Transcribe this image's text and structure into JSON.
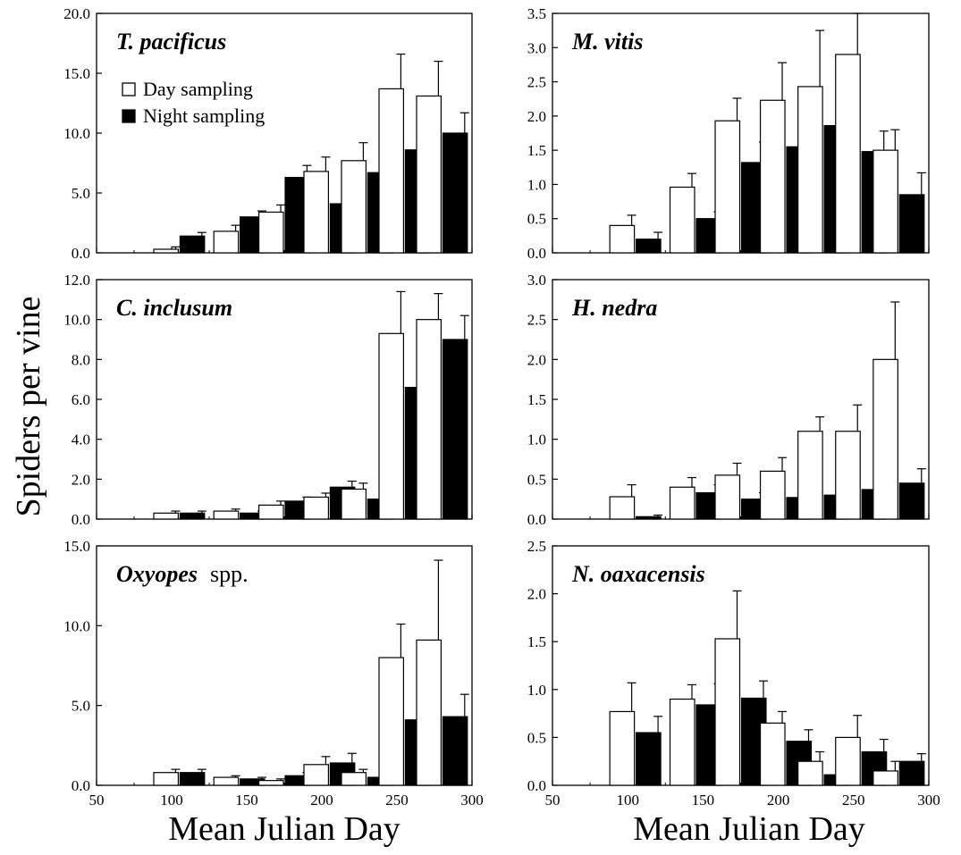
{
  "colors": {
    "day": "#ffffff",
    "night": "#000000",
    "stroke": "#000000"
  },
  "figure": {
    "ylabel": "Spiders per vine",
    "xlabel_left": "Mean Julian Day",
    "xlabel_right": "Mean Julian Day"
  },
  "chart_data": [
    {
      "type": "bar",
      "title": "T. pacificus",
      "x": [
        105,
        145,
        175,
        205,
        230,
        255,
        280
      ],
      "series": [
        {
          "name": "Day sampling",
          "values": [
            0.3,
            1.8,
            3.4,
            6.8,
            7.7,
            13.7,
            13.1
          ],
          "errors": [
            0.2,
            0.5,
            0.6,
            1.2,
            1.5,
            2.9,
            2.9
          ]
        },
        {
          "name": "Night sampling",
          "values": [
            1.4,
            3.0,
            6.3,
            4.1,
            6.7,
            8.6,
            10.0
          ],
          "errors": [
            0.3,
            0.5,
            1.0,
            0.7,
            1.6,
            1.1,
            1.7
          ]
        }
      ],
      "xlim": [
        50,
        300
      ],
      "ylim": [
        0,
        20
      ],
      "yticks": [
        "0.0",
        "5.0",
        "10.0",
        "15.0",
        "20.0"
      ],
      "xticks": [
        "50",
        "100",
        "150",
        "200",
        "250",
        "300"
      ],
      "legend": "top-left"
    },
    {
      "type": "bar",
      "title": "M. vitis",
      "x": [
        105,
        145,
        175,
        205,
        230,
        255,
        280
      ],
      "series": [
        {
          "name": "Day sampling",
          "values": [
            0.4,
            0.96,
            1.93,
            2.23,
            2.43,
            2.9,
            1.5
          ],
          "errors": [
            0.15,
            0.2,
            0.33,
            0.55,
            0.82,
            0.6,
            0.3
          ]
        },
        {
          "name": "Night sampling",
          "values": [
            0.2,
            0.5,
            1.32,
            1.55,
            1.86,
            1.48,
            0.85
          ],
          "errors": [
            0.1,
            0.1,
            0.3,
            0.3,
            0.45,
            0.3,
            0.32
          ]
        }
      ],
      "xlim": [
        50,
        300
      ],
      "ylim": [
        0,
        3.5
      ],
      "yticks": [
        "0.0",
        "0.5",
        "1.0",
        "1.5",
        "2.0",
        "2.5",
        "3.0",
        "3.5"
      ],
      "xticks": [
        "50",
        "100",
        "150",
        "200",
        "250",
        "300"
      ]
    },
    {
      "type": "bar",
      "title": "C. inclusum",
      "x": [
        105,
        145,
        175,
        205,
        230,
        255,
        280
      ],
      "series": [
        {
          "name": "Day sampling",
          "values": [
            0.3,
            0.4,
            0.7,
            1.1,
            1.5,
            9.3,
            10.0
          ],
          "errors": [
            0.1,
            0.1,
            0.2,
            0.2,
            0.3,
            2.1,
            1.3
          ]
        },
        {
          "name": "Night sampling",
          "values": [
            0.3,
            0.3,
            0.9,
            1.6,
            1.0,
            6.6,
            9.0
          ],
          "errors": [
            0.1,
            0.1,
            0.2,
            0.3,
            0.4,
            1.7,
            1.2
          ]
        }
      ],
      "xlim": [
        50,
        300
      ],
      "ylim": [
        0,
        12
      ],
      "yticks": [
        "0.0",
        "2.0",
        "4.0",
        "6.0",
        "8.0",
        "10.0",
        "12.0"
      ],
      "xticks": [
        "50",
        "100",
        "150",
        "200",
        "250",
        "300"
      ]
    },
    {
      "type": "bar",
      "title": "H. nedra",
      "x": [
        105,
        145,
        175,
        205,
        230,
        255,
        280
      ],
      "series": [
        {
          "name": "Day sampling",
          "values": [
            0.28,
            0.4,
            0.55,
            0.6,
            1.1,
            1.1,
            2.0
          ],
          "errors": [
            0.15,
            0.12,
            0.15,
            0.17,
            0.18,
            0.33,
            0.72
          ]
        },
        {
          "name": "Night sampling",
          "values": [
            0.03,
            0.33,
            0.25,
            0.27,
            0.3,
            0.37,
            0.45
          ],
          "errors": [
            0.02,
            0.1,
            0.08,
            0.1,
            0.17,
            0.1,
            0.18
          ]
        }
      ],
      "xlim": [
        50,
        300
      ],
      "ylim": [
        0,
        3.0
      ],
      "yticks": [
        "0.0",
        "0.5",
        "1.0",
        "1.5",
        "2.0",
        "2.5",
        "3.0"
      ],
      "xticks": [
        "50",
        "100",
        "150",
        "200",
        "250",
        "300"
      ]
    },
    {
      "type": "bar",
      "title": "Oxyopes",
      "title_suffix": "spp.",
      "x": [
        105,
        145,
        175,
        205,
        230,
        255,
        280
      ],
      "series": [
        {
          "name": "Day sampling",
          "values": [
            0.8,
            0.5,
            0.3,
            1.3,
            0.8,
            8.0,
            9.1
          ],
          "errors": [
            0.2,
            0.1,
            0.1,
            0.5,
            0.2,
            2.1,
            5.0
          ]
        },
        {
          "name": "Night sampling",
          "values": [
            0.8,
            0.4,
            0.6,
            1.4,
            0.5,
            4.1,
            4.3
          ],
          "errors": [
            0.2,
            0.1,
            0.2,
            0.6,
            0.1,
            1.3,
            1.4
          ]
        }
      ],
      "xlim": [
        50,
        300
      ],
      "ylim": [
        0,
        15
      ],
      "yticks": [
        "0.0",
        "5.0",
        "10.0",
        "15.0"
      ],
      "xticks": [
        "50",
        "100",
        "150",
        "200",
        "250",
        "300"
      ]
    },
    {
      "type": "bar",
      "title": "N. oaxacensis",
      "x": [
        105,
        145,
        175,
        205,
        230,
        255,
        280
      ],
      "series": [
        {
          "name": "Day sampling",
          "values": [
            0.77,
            0.9,
            1.53,
            0.65,
            0.25,
            0.5,
            0.15
          ],
          "errors": [
            0.3,
            0.15,
            0.5,
            0.12,
            0.1,
            0.23,
            0.1
          ]
        },
        {
          "name": "Night sampling",
          "values": [
            0.55,
            0.84,
            0.91,
            0.46,
            0.11,
            0.35,
            0.25
          ],
          "errors": [
            0.17,
            0.22,
            0.18,
            0.12,
            0.06,
            0.13,
            0.08
          ]
        }
      ],
      "xlim": [
        50,
        300
      ],
      "ylim": [
        0,
        2.5
      ],
      "yticks": [
        "0.0",
        "0.5",
        "1.0",
        "1.5",
        "2.0",
        "2.5"
      ],
      "xticks": [
        "50",
        "100",
        "150",
        "200",
        "250",
        "300"
      ]
    }
  ]
}
